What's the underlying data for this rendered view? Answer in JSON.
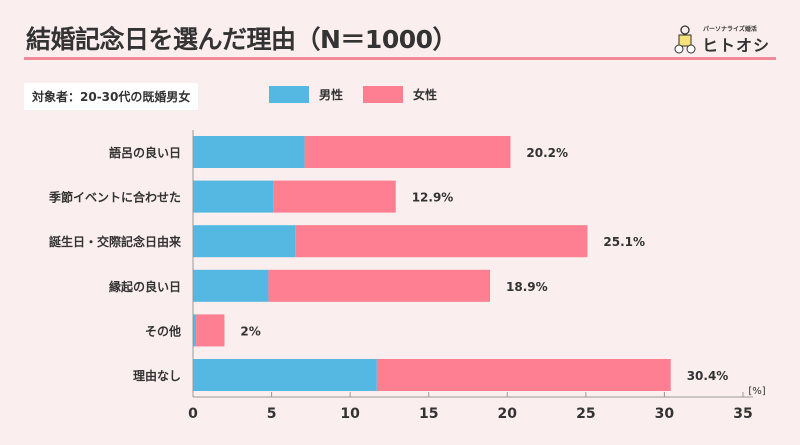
{
  "header": {
    "title": "結婚記念日を選んだ理由（N＝1000）",
    "logo_tagline": "パーソナライズ婚活",
    "logo_name": "ヒトオシ"
  },
  "subject": "対象者：20-30代の既婚男女",
  "chart_data": {
    "type": "bar",
    "orientation": "horizontal",
    "stacked": true,
    "categories": [
      "語呂の良い日",
      "季節イベントに合わせた",
      "誕生日・交際記念日由来",
      "縁起の良い日",
      "その他",
      "理由なし"
    ],
    "series": [
      {
        "name": "男性",
        "color": "#55b8e3",
        "values": [
          7.1,
          5.1,
          6.5,
          4.8,
          0.2,
          11.7
        ]
      },
      {
        "name": "女性",
        "color": "#fe7f91",
        "values": [
          13.1,
          7.8,
          18.6,
          14.1,
          1.8,
          18.7
        ]
      }
    ],
    "totals_labels": [
      "20.2%",
      "12.9%",
      "25.1%",
      "18.9%",
      "2%",
      "30.4%"
    ],
    "xlim": [
      0,
      35
    ],
    "xticks": [
      0,
      5,
      10,
      15,
      20,
      25,
      30,
      35
    ],
    "xunit": "[%]",
    "legend": "top",
    "grid": false
  }
}
